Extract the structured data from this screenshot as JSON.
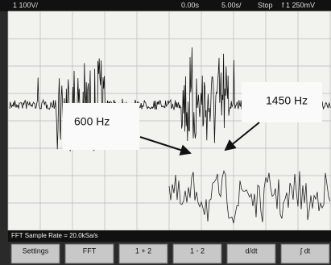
{
  "top_bar": {
    "channel": "1 100V/",
    "position": "0.00s",
    "timebase": "5.00s/",
    "status": "Stop",
    "trigger": "f 1 250mV"
  },
  "annotations": [
    "600 Hz",
    "1450 Hz"
  ],
  "status_line": "FFT Sample Rate = 20.0kSa/s",
  "softkeys": [
    "Settings",
    "FFT",
    "1 + 2",
    "1 - 2",
    "d/dt",
    "∫ dt"
  ]
}
